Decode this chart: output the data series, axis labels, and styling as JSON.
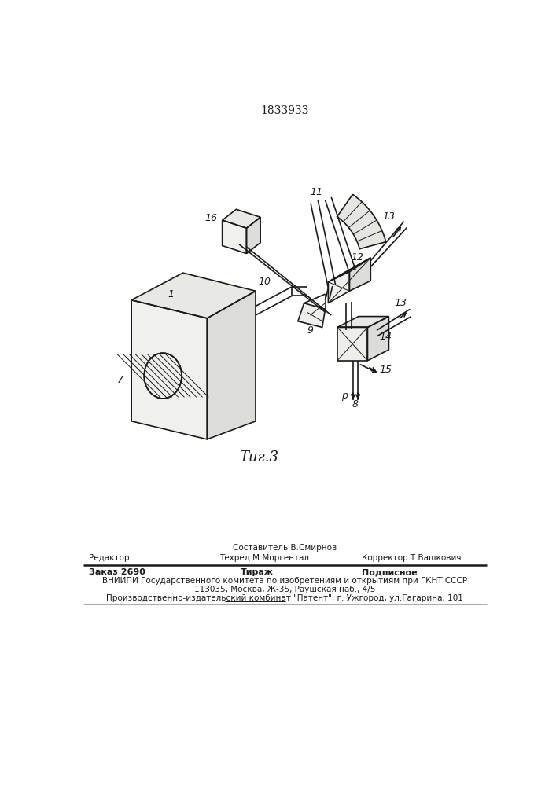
{
  "patent_number": "1833933",
  "fig_label": "Τиг.3",
  "bg_color": "#ffffff",
  "line_color": "#1a1a1a",
  "footer": {
    "sostavitel_label": "Составитель В.Смирнов",
    "redaktor_label": "Редактор",
    "tehred_label": "Техред М.Моргентал",
    "korrektor_label": "Корректор Т.Вашкович",
    "zakaz_label": "Заказ 2690",
    "tirazh_label": "Тираж",
    "podpisnoe_label": "Подписное",
    "vniiipi_line": "ВНИИПИ Государственного комитета по изобретениям и открытиям при ГКНТ СССР",
    "address_line": "113035, Москва, Ж-35, Раушская наб., 4/5",
    "patent_line": "Производственно-издательский комбинат \"Патент\", г. Ужгород, ул.Гагарина, 101"
  }
}
